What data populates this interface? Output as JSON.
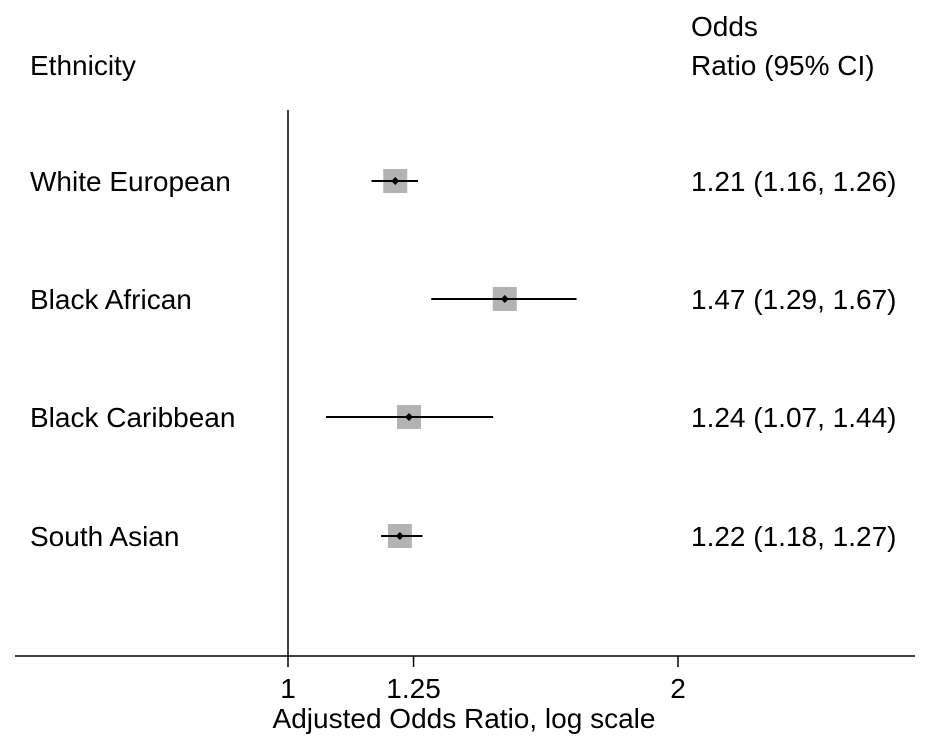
{
  "chart_data": {
    "type": "forest",
    "xscale": "log",
    "xlim": [
      0.885,
      2.72
    ],
    "null_line": 1,
    "col_header_left": "Ethnicity",
    "col_header_right_line1": "Odds",
    "col_header_right_line2": "Ratio (95% CI)",
    "xlabel": "Adjusted Odds Ratio, log scale",
    "xticks": [
      {
        "value": 1,
        "label": "1"
      },
      {
        "value": 1.25,
        "label": "1.25"
      },
      {
        "value": 2,
        "label": "2"
      }
    ],
    "rows": [
      {
        "label": "White European",
        "or": 1.21,
        "lo": 1.16,
        "hi": 1.26,
        "text": "1.21 (1.16, 1.26)",
        "weight": 0.9
      },
      {
        "label": "Black African",
        "or": 1.47,
        "lo": 1.29,
        "hi": 1.67,
        "text": "1.47 (1.29, 1.67)",
        "weight": 0.9
      },
      {
        "label": "Black Caribbean",
        "or": 1.24,
        "lo": 1.07,
        "hi": 1.44,
        "text": "1.24 (1.07, 1.44)",
        "weight": 0.9
      },
      {
        "label": "South Asian",
        "or": 1.22,
        "lo": 1.18,
        "hi": 1.27,
        "text": "1.22 (1.18, 1.27)",
        "weight": 0.9
      }
    ],
    "colors": {
      "box": "#b3b3b3",
      "line": "#000000",
      "point": "#000000"
    }
  }
}
